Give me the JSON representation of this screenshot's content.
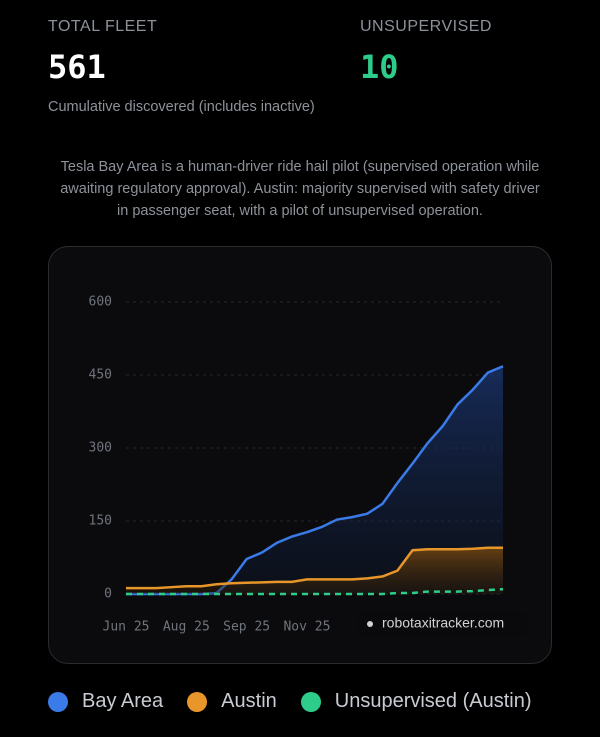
{
  "stats": [
    {
      "label": "TOTAL FLEET",
      "value": "561",
      "note": "Cumulative discovered (includes inactive)"
    },
    {
      "label": "UNSUPERVISED",
      "value": "10"
    }
  ],
  "description": "Tesla Bay Area is a human-driver ride hail pilot (supervised operation while awaiting regulatory approval). Austin: majority supervised with safety driver in passenger seat, with a pilot of unsupervised operation.",
  "chart_data": {
    "type": "line",
    "categories": [
      "Jun 25",
      null,
      null,
      null,
      "Aug 25",
      null,
      null,
      null,
      "Sep 25",
      null,
      null,
      null,
      "Nov 25",
      null,
      null,
      null,
      null,
      null,
      null,
      null,
      null,
      null,
      null,
      null,
      null,
      null
    ],
    "series": [
      {
        "name": "Bay Area",
        "color": "#3b7be8",
        "values": [
          0,
          0,
          0,
          0,
          0,
          0,
          2,
          30,
          72,
          85,
          105,
          118,
          127,
          138,
          153,
          158,
          165,
          185,
          228,
          268,
          310,
          345,
          390,
          420,
          455,
          468
        ]
      },
      {
        "name": "Austin",
        "color": "#e8962a",
        "values": [
          12,
          12,
          12,
          14,
          16,
          16,
          20,
          22,
          23,
          24,
          25,
          25,
          30,
          30,
          30,
          30,
          32,
          36,
          48,
          90,
          92,
          92,
          92,
          93,
          95,
          95
        ]
      },
      {
        "name": "Unsupervised (Austin)",
        "color": "#2ecc8a",
        "values": [
          0,
          0,
          0,
          0,
          0,
          0,
          0,
          0,
          0,
          0,
          0,
          0,
          0,
          0,
          0,
          0,
          0,
          0,
          2,
          2,
          5,
          5,
          5,
          6,
          8,
          10
        ]
      }
    ],
    "ylim": [
      0,
      600
    ],
    "yticks": [
      0,
      150,
      300,
      450,
      600
    ],
    "grid": true,
    "annotation": "robotaxitracker.com"
  }
}
